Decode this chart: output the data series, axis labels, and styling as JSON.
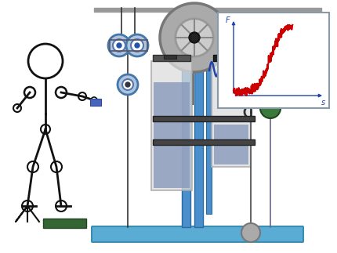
{
  "fig_width": 4.3,
  "fig_height": 3.23,
  "bg_color": "#ffffff",
  "stick_color": "#111111",
  "ceiling_color": "#999999",
  "base_color": "#5bacd4",
  "cylinder_fill_color": "#8899bb",
  "blue_rod_color": "#4a8fcc",
  "green_ball_color": "#3a7a3a",
  "graph_curve_color": "#cc0000"
}
